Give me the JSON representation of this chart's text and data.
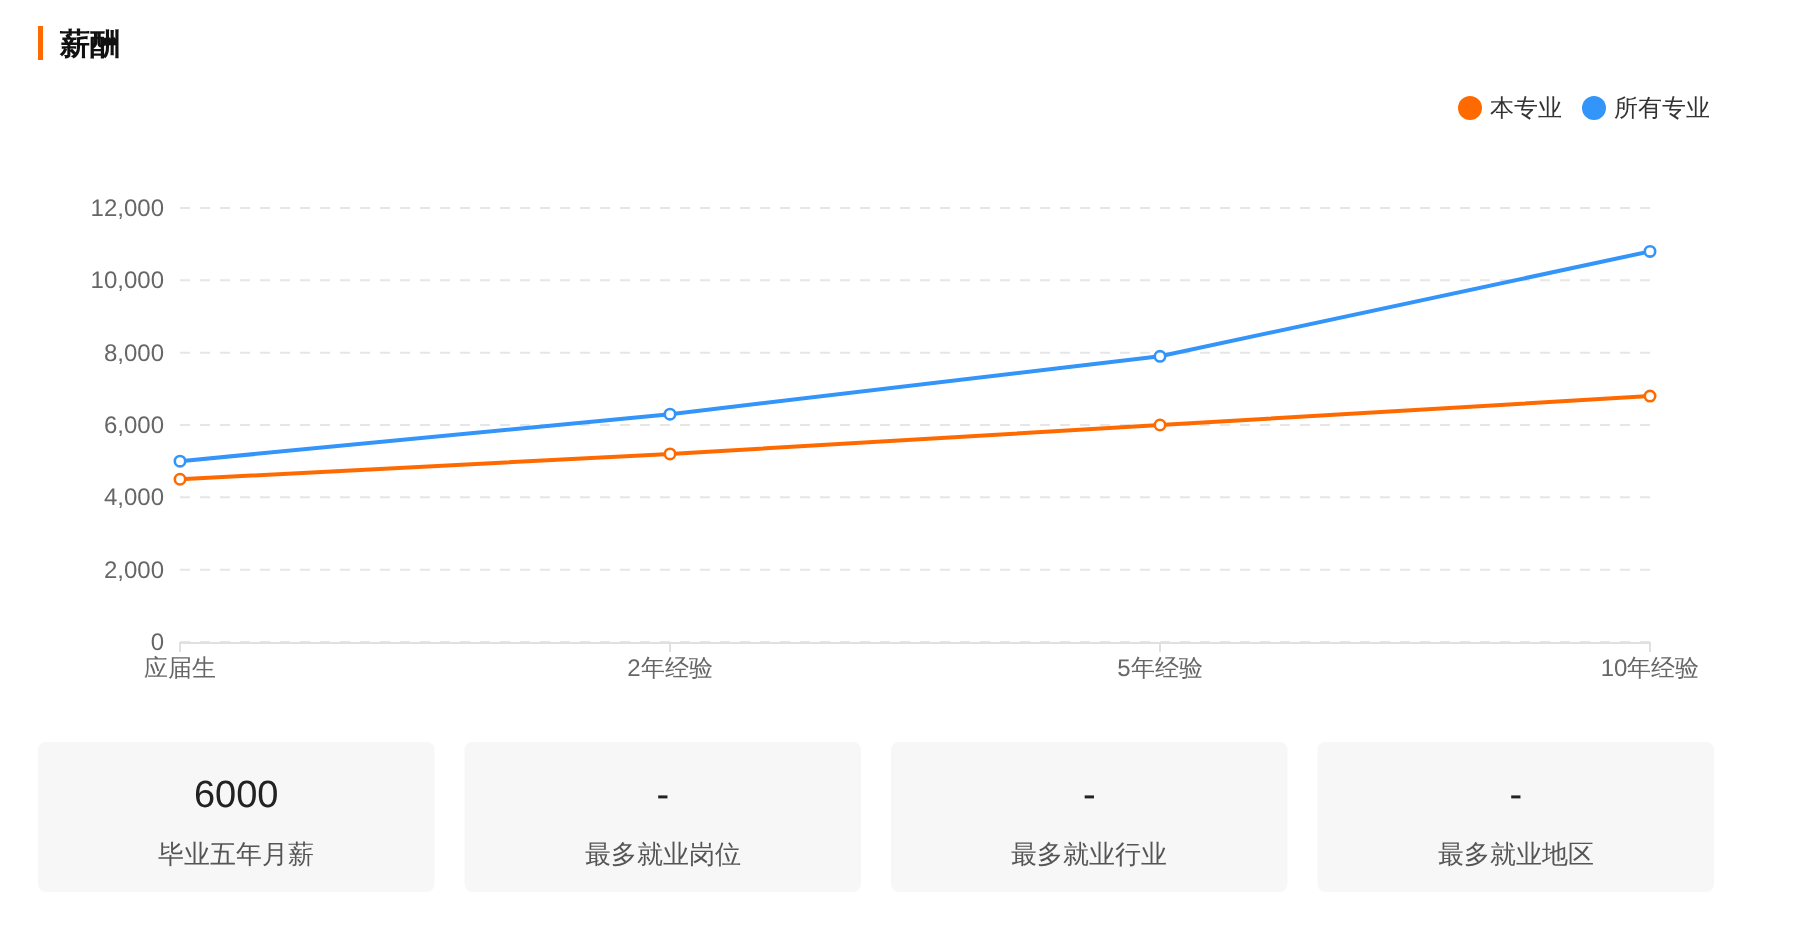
{
  "chart_data": [
    {
      "type": "line",
      "title": "薪酬",
      "categories": [
        "应届生",
        "2年经验",
        "5年经验",
        "10年经验"
      ],
      "series": [
        {
          "name": "本专业",
          "color": "#ff6a00",
          "values": [
            4500,
            5200,
            6000,
            6800
          ]
        },
        {
          "name": "所有专业",
          "color": "#3394f9",
          "values": [
            5000,
            6300,
            7900,
            10800
          ]
        }
      ],
      "ylim": [
        0,
        12000
      ],
      "yticks": [
        0,
        {
          "value": 2000,
          "label": "2,000"
        },
        {
          "value": 4000,
          "label": "4,000"
        },
        {
          "value": 6000,
          "label": "6,000"
        },
        {
          "value": 8000,
          "label": "8,000"
        },
        {
          "value": 10000,
          "label": "10,000"
        },
        {
          "value": 12000,
          "label": "12,000"
        }
      ],
      "grid": "y",
      "legend": "top right",
      "marker": "circle",
      "line_style": "solid"
    },
    {
      "type": "other",
      "annotations": [
        "6000",
        "毕业五年月薪"
      ]
    },
    {
      "type": "other",
      "annotations": [
        "-",
        "最多就业岗位"
      ]
    },
    {
      "type": "other",
      "annotations": [
        "-",
        "最多就业行业"
      ]
    },
    {
      "type": "other",
      "annotations": [
        "-",
        "最多就业地区"
      ]
    }
  ]
}
